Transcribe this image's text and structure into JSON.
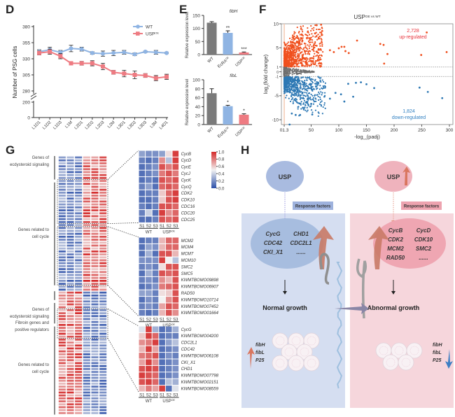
{
  "panels": {
    "D": "D",
    "E": "E",
    "F": "F",
    "G": "G",
    "H": "H"
  },
  "chart_data": [
    {
      "id": "D",
      "type": "line",
      "title": "",
      "xlabel": "",
      "ylabel": "Number of PSG cells",
      "categories": [
        "L1D1",
        "L1D2",
        "L1D3",
        "L1M",
        "L2D1",
        "L2D2",
        "L2D3",
        "L2M",
        "L3D1",
        "L3D2",
        "L3D3",
        "L3M",
        "L4D1"
      ],
      "yticks": [
        0,
        280,
        305,
        330,
        355,
        380
      ],
      "ytick_labels": [
        "0",
        "280",
        "305",
        "330",
        "355",
        "380"
      ],
      "ybreak": [
        200,
        280
      ],
      "ytick_break_label": "200",
      "ylim": [
        280,
        380
      ],
      "legend": "top-right",
      "series": [
        {
          "name": "WT",
          "color": "#8fb4e3",
          "values": [
            341,
            344,
            340,
            346,
            345,
            339,
            338,
            339,
            340,
            337,
            341,
            340,
            339
          ],
          "errors": [
            3,
            4,
            3,
            5,
            3,
            2,
            4,
            4,
            3,
            2,
            1,
            3,
            1
          ]
        },
        {
          "name": "USP^OE",
          "color": "#ee7b82",
          "values": [
            339,
            341,
            334,
            323,
            323,
            323,
            318,
            309,
            307,
            305,
            304,
            300,
            302
          ],
          "errors": [
            3,
            4,
            4,
            1,
            3,
            4,
            5,
            3,
            5,
            6,
            3,
            4,
            4
          ]
        }
      ]
    },
    {
      "id": "E1",
      "type": "bar",
      "title": "fibH",
      "ylabel": "Relative expression level",
      "categories": [
        "WT",
        "EcRA^OE",
        "USP^OE"
      ],
      "values": [
        122,
        83,
        8
      ],
      "errors": [
        4,
        8,
        2
      ],
      "significance": [
        "",
        "**",
        "***"
      ],
      "colors": [
        "#7a7a7a",
        "#8fb4e3",
        "#ee7b82"
      ],
      "ylim": [
        0,
        150
      ],
      "yticks": [
        0,
        50,
        100,
        150
      ]
    },
    {
      "id": "E2",
      "type": "bar",
      "title": "fibL",
      "ylabel": "Relative expression level",
      "categories": [
        "WT",
        "EcRA^OE",
        "USP^OE"
      ],
      "values": [
        70,
        41,
        22
      ],
      "errors": [
        10,
        2,
        2
      ],
      "significance": [
        "",
        "*",
        "*"
      ],
      "colors": [
        "#7a7a7a",
        "#8fb4e3",
        "#ee7b82"
      ],
      "ylim": [
        0,
        100
      ],
      "yticks": [
        0,
        20,
        40,
        60,
        80,
        100
      ]
    },
    {
      "id": "F",
      "type": "scatter",
      "title": "USP^OE vs WT",
      "xlabel": "-log10(padj)",
      "ylabel": "log2(fold change)",
      "xlim": [
        0,
        300
      ],
      "ylim": [
        -11,
        10
      ],
      "xticks": [
        1.3,
        50,
        100,
        150,
        200,
        250,
        300
      ],
      "xtick_labels": [
        "01.3",
        "50",
        "100",
        "150",
        "200",
        "250",
        "300"
      ],
      "yticks": [
        -10,
        -5,
        -1,
        0,
        1,
        5,
        10
      ],
      "thresholds": {
        "log2fc": [
          -1,
          1
        ],
        "padj_log": 1.3
      },
      "annotations": [
        {
          "count": "2,728",
          "label": "up-regulated",
          "color": "#e8323a"
        },
        {
          "count": "1,824",
          "label": "down-regulated",
          "color": "#2f7fc1"
        }
      ],
      "up_color": "#f0501e",
      "down_color": "#2d78b4",
      "ns_color": "#6e6e6e",
      "outliers_up": [
        [
          259,
          8.2
        ],
        [
          295,
          4.1
        ],
        [
          249,
          3.5
        ],
        [
          188,
          3.7
        ],
        [
          175,
          5.8
        ],
        [
          181,
          5.6
        ],
        [
          182,
          1.7
        ],
        [
          133,
          6.5
        ],
        [
          110,
          5.2
        ],
        [
          112,
          4.3
        ],
        [
          118,
          3.9
        ],
        [
          100,
          4.9
        ],
        [
          84,
          4.5
        ],
        [
          60,
          9.7
        ],
        [
          68,
          9.8
        ],
        [
          70,
          8.5
        ],
        [
          57,
          8.0
        ],
        [
          48,
          7.0
        ],
        [
          91,
          4.1
        ],
        [
          105,
          5.2
        ]
      ],
      "outliers_down": [
        [
          287,
          -5.5
        ],
        [
          261,
          -4.2
        ],
        [
          246,
          -3.3
        ],
        [
          164,
          -3.4
        ],
        [
          150,
          -2.6
        ],
        [
          140,
          -2.2
        ],
        [
          131,
          -2.3
        ],
        [
          126,
          -5.2
        ],
        [
          110,
          -6.2
        ],
        [
          94,
          -4.4
        ],
        [
          84,
          -5.6
        ],
        [
          52,
          -8.9
        ],
        [
          50,
          -6.7
        ],
        [
          30,
          -9.0
        ],
        [
          22,
          -9.0
        ],
        [
          11,
          -11.0
        ],
        [
          15,
          -8.7
        ],
        [
          35,
          -7.5
        ],
        [
          104,
          -4.7
        ],
        [
          117,
          -2.5
        ]
      ]
    },
    {
      "id": "G-legend",
      "type": "heatmap",
      "colorbar_ticks": [
        "1.0",
        "0.8",
        "0.6",
        "0.4",
        "0.2",
        "0.0"
      ],
      "colorbar_range": [
        0,
        1
      ],
      "colorbar_colors": [
        "#2b4fa8",
        "#f2f2f2",
        "#d42a2a"
      ]
    },
    {
      "id": "G-zoom1",
      "type": "heatmap",
      "columns": [
        "S1",
        "S2",
        "S3",
        "S1",
        "S2",
        "S3"
      ],
      "groups": [
        "WT",
        "USP^OE"
      ],
      "rows": [
        "CycB",
        "CycD",
        "CycE",
        "CycJ",
        "CycK",
        "CycQ",
        "CDK2",
        "CDK10",
        "CDC16",
        "CDC20",
        "CDC25"
      ],
      "values": [
        [
          0.25,
          0.2,
          0.2,
          0.25,
          0.55,
          0.95
        ],
        [
          0.15,
          0.1,
          0.15,
          0.75,
          0.35,
          0.95
        ],
        [
          0.1,
          0.15,
          0.2,
          0.9,
          0.8,
          0.9
        ],
        [
          0.1,
          0.15,
          0.2,
          0.8,
          0.9,
          0.8
        ],
        [
          0.1,
          0.15,
          0.1,
          0.9,
          0.85,
          0.9
        ],
        [
          0.15,
          0.25,
          0.1,
          0.85,
          0.9,
          0.85
        ],
        [
          0.1,
          0.15,
          0.15,
          0.6,
          0.85,
          0.95
        ],
        [
          0.1,
          0.1,
          0.15,
          0.6,
          0.9,
          0.95
        ],
        [
          0.15,
          0.1,
          0.15,
          0.9,
          0.9,
          0.85
        ],
        [
          0.15,
          0.4,
          0.1,
          0.95,
          0.75,
          0.85
        ],
        [
          0.1,
          0.1,
          0.15,
          0.9,
          0.85,
          0.9
        ]
      ]
    },
    {
      "id": "G-zoom2",
      "type": "heatmap",
      "columns": [
        "S1",
        "S2",
        "S3",
        "S1",
        "S2",
        "S3"
      ],
      "groups": [
        "WT",
        "USP^OE"
      ],
      "rows": [
        "MCM2",
        "MCM4",
        "MCM7",
        "MCM10",
        "SMC2",
        "SMC5",
        "KWMTBOMO09898",
        "KWMTBOMO06907",
        "RAD50",
        "KWMTBOMO10714",
        "KWMTBOMO07452",
        "KWMTBOMO01664"
      ],
      "values": [
        [
          0.1,
          0.15,
          0.15,
          0.65,
          0.85,
          0.85
        ],
        [
          0.1,
          0.25,
          0.2,
          0.65,
          0.85,
          0.85
        ],
        [
          0.1,
          0.3,
          0.1,
          0.9,
          0.9,
          0.65
        ],
        [
          0.2,
          0.2,
          0.2,
          0.95,
          0.5,
          0.35
        ],
        [
          0.15,
          0.2,
          0.15,
          0.55,
          0.9,
          0.9
        ],
        [
          0.1,
          0.3,
          0.15,
          0.9,
          0.85,
          0.9
        ],
        [
          0.15,
          0.2,
          0.15,
          0.75,
          0.65,
          0.9
        ],
        [
          0.1,
          0.15,
          0.2,
          0.8,
          0.85,
          0.9
        ],
        [
          0.25,
          0.25,
          0.15,
          0.55,
          0.6,
          0.9
        ],
        [
          0.1,
          0.2,
          0.15,
          0.5,
          0.75,
          0.9
        ],
        [
          0.15,
          0.2,
          0.15,
          0.7,
          0.9,
          0.85
        ],
        [
          0.15,
          0.1,
          0.15,
          0.65,
          0.9,
          0.75
        ]
      ]
    },
    {
      "id": "G-zoom3",
      "type": "heatmap",
      "columns": [
        "S1",
        "S2",
        "S3",
        "S1",
        "S2",
        "S3"
      ],
      "groups": [
        "WT",
        "USP^OE"
      ],
      "rows": [
        "CycG",
        "KWMTBOMO04200",
        "CDC2L1",
        "CDC42",
        "KWMTBOMO06108",
        "CKI_X1",
        "CHD1",
        "KWMTBOMO07798",
        "KWMTBOMO02151",
        "KWMTBOMO08559"
      ],
      "values": [
        [
          0.45,
          0.95,
          0.3,
          0.1,
          0.15,
          0.3
        ],
        [
          0.6,
          0.95,
          0.85,
          0.1,
          0.15,
          0.15
        ],
        [
          0.75,
          0.8,
          0.95,
          0.1,
          0.25,
          0.35
        ],
        [
          0.65,
          0.95,
          0.7,
          0.1,
          0.15,
          0.2
        ],
        [
          0.8,
          0.85,
          0.9,
          0.1,
          0.2,
          0.15
        ],
        [
          0.7,
          0.95,
          0.75,
          0.1,
          0.15,
          0.2
        ],
        [
          0.9,
          0.95,
          0.9,
          0.1,
          0.15,
          0.2
        ],
        [
          0.95,
          0.9,
          0.85,
          0.1,
          0.15,
          0.2
        ],
        [
          0.9,
          0.95,
          0.85,
          0.1,
          0.35,
          0.3
        ],
        [
          0.65,
          0.8,
          0.7,
          0.95,
          0.1,
          0.45
        ]
      ]
    }
  ],
  "heatmap_main": {
    "columns": [
      "S1",
      "S2",
      "S3",
      "S1",
      "S2",
      "S3"
    ],
    "groups": [
      "WT",
      "USP^OE"
    ],
    "group_labels": [
      "Genes of ecdysteroid signaling",
      "Genes related to cell cycle",
      "Genes of ecdysteroid signaling",
      "Fibroin genes and positive regulators",
      "Genes related to cell cycle"
    ]
  },
  "diagram_H": {
    "left": {
      "node": "USP",
      "response": "Response factors",
      "genes": [
        "CycG",
        "CHD1",
        "CDC42",
        "CDC2L1",
        "CKI_X1",
        "......"
      ],
      "outcome": "Normal growth",
      "fib_genes": [
        "fibH",
        "fibL",
        "P25"
      ],
      "bg": "#d5def1",
      "accent": "#9fb4dc"
    },
    "right": {
      "node": "USP",
      "response": "Response factors",
      "genes": [
        "CycB",
        "CycD",
        "CDK2",
        "CDK10",
        "MCM2",
        "SMC2",
        "RAD50",
        "......"
      ],
      "outcome": "Abnormal growth",
      "fib_genes": [
        "fibH",
        "fibL",
        "P25"
      ],
      "bg": "#f6d6dc",
      "accent": "#eaa3ad"
    }
  }
}
